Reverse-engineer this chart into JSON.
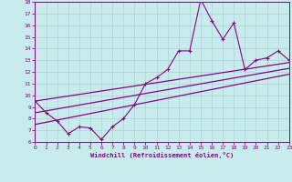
{
  "xlabel": "Windchill (Refroidissement éolien,°C)",
  "bg_color": "#c8ecec",
  "grid_color": "#b0d8d8",
  "line_color": "#880088",
  "x": [
    0,
    1,
    2,
    3,
    4,
    5,
    6,
    7,
    8,
    9,
    10,
    11,
    12,
    13,
    14,
    15,
    16,
    17,
    18,
    19,
    20,
    21,
    22,
    23
  ],
  "y_main": [
    9.5,
    8.5,
    7.8,
    6.7,
    7.3,
    7.2,
    6.2,
    7.3,
    8.0,
    9.2,
    11.0,
    11.5,
    12.2,
    13.8,
    13.8,
    18.2,
    16.4,
    14.8,
    16.2,
    12.2,
    13.0,
    13.2,
    13.8,
    13.0
  ],
  "trend1_x": [
    0,
    23
  ],
  "trend1_y": [
    9.5,
    12.8
  ],
  "trend2_x": [
    0,
    23
  ],
  "trend2_y": [
    8.5,
    12.3
  ],
  "trend3_x": [
    0,
    23
  ],
  "trend3_y": [
    7.5,
    11.8
  ],
  "ylim": [
    6,
    18
  ],
  "xlim": [
    0,
    23
  ],
  "yticks": [
    6,
    7,
    8,
    9,
    10,
    11,
    12,
    13,
    14,
    15,
    16,
    17,
    18
  ],
  "xticks": [
    0,
    1,
    2,
    3,
    4,
    5,
    6,
    7,
    8,
    9,
    10,
    11,
    12,
    13,
    14,
    15,
    16,
    17,
    18,
    19,
    20,
    21,
    22,
    23
  ]
}
